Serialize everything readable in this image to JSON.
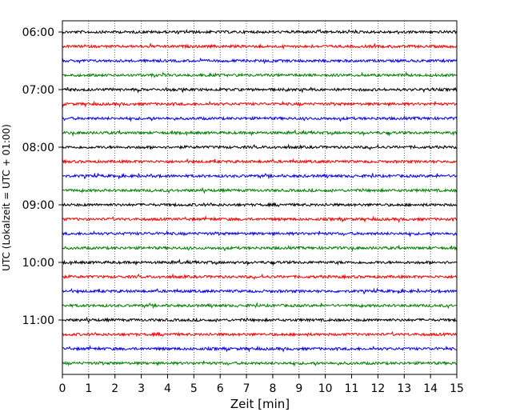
{
  "chart_data": {
    "type": "line",
    "title": "",
    "xlabel": "Zeit  [min]",
    "ylabel": "UTC (Lokalzeit = UTC + 01:00)",
    "xlim": [
      0,
      15
    ],
    "x_ticks": [
      "0",
      "1",
      "2",
      "3",
      "4",
      "5",
      "6",
      "7",
      "8",
      "9",
      "10",
      "11",
      "12",
      "13",
      "14",
      "15"
    ],
    "y_ticks": [
      "06:00",
      "07:00",
      "08:00",
      "09:00",
      "10:00",
      "11:00"
    ],
    "grid": "vertical-dotted",
    "legend": "none",
    "trace_interval_min": 15,
    "trace_start": "06:00",
    "trace_end": "11:45",
    "trace_colors": [
      "#000000",
      "#ff0000",
      "#0000ff",
      "#008000"
    ],
    "traces": [
      {
        "start": "06:00"
      },
      {
        "start": "06:15"
      },
      {
        "start": "06:30"
      },
      {
        "start": "06:45"
      },
      {
        "start": "07:00"
      },
      {
        "start": "07:15"
      },
      {
        "start": "07:30"
      },
      {
        "start": "07:45"
      },
      {
        "start": "08:00"
      },
      {
        "start": "08:15"
      },
      {
        "start": "08:30"
      },
      {
        "start": "08:45"
      },
      {
        "start": "09:00"
      },
      {
        "start": "09:15"
      },
      {
        "start": "09:30"
      },
      {
        "start": "09:45"
      },
      {
        "start": "10:00"
      },
      {
        "start": "10:15"
      },
      {
        "start": "10:30"
      },
      {
        "start": "10:45"
      },
      {
        "start": "11:00"
      },
      {
        "start": "11:15"
      },
      {
        "start": "11:30"
      },
      {
        "start": "11:45"
      }
    ]
  }
}
